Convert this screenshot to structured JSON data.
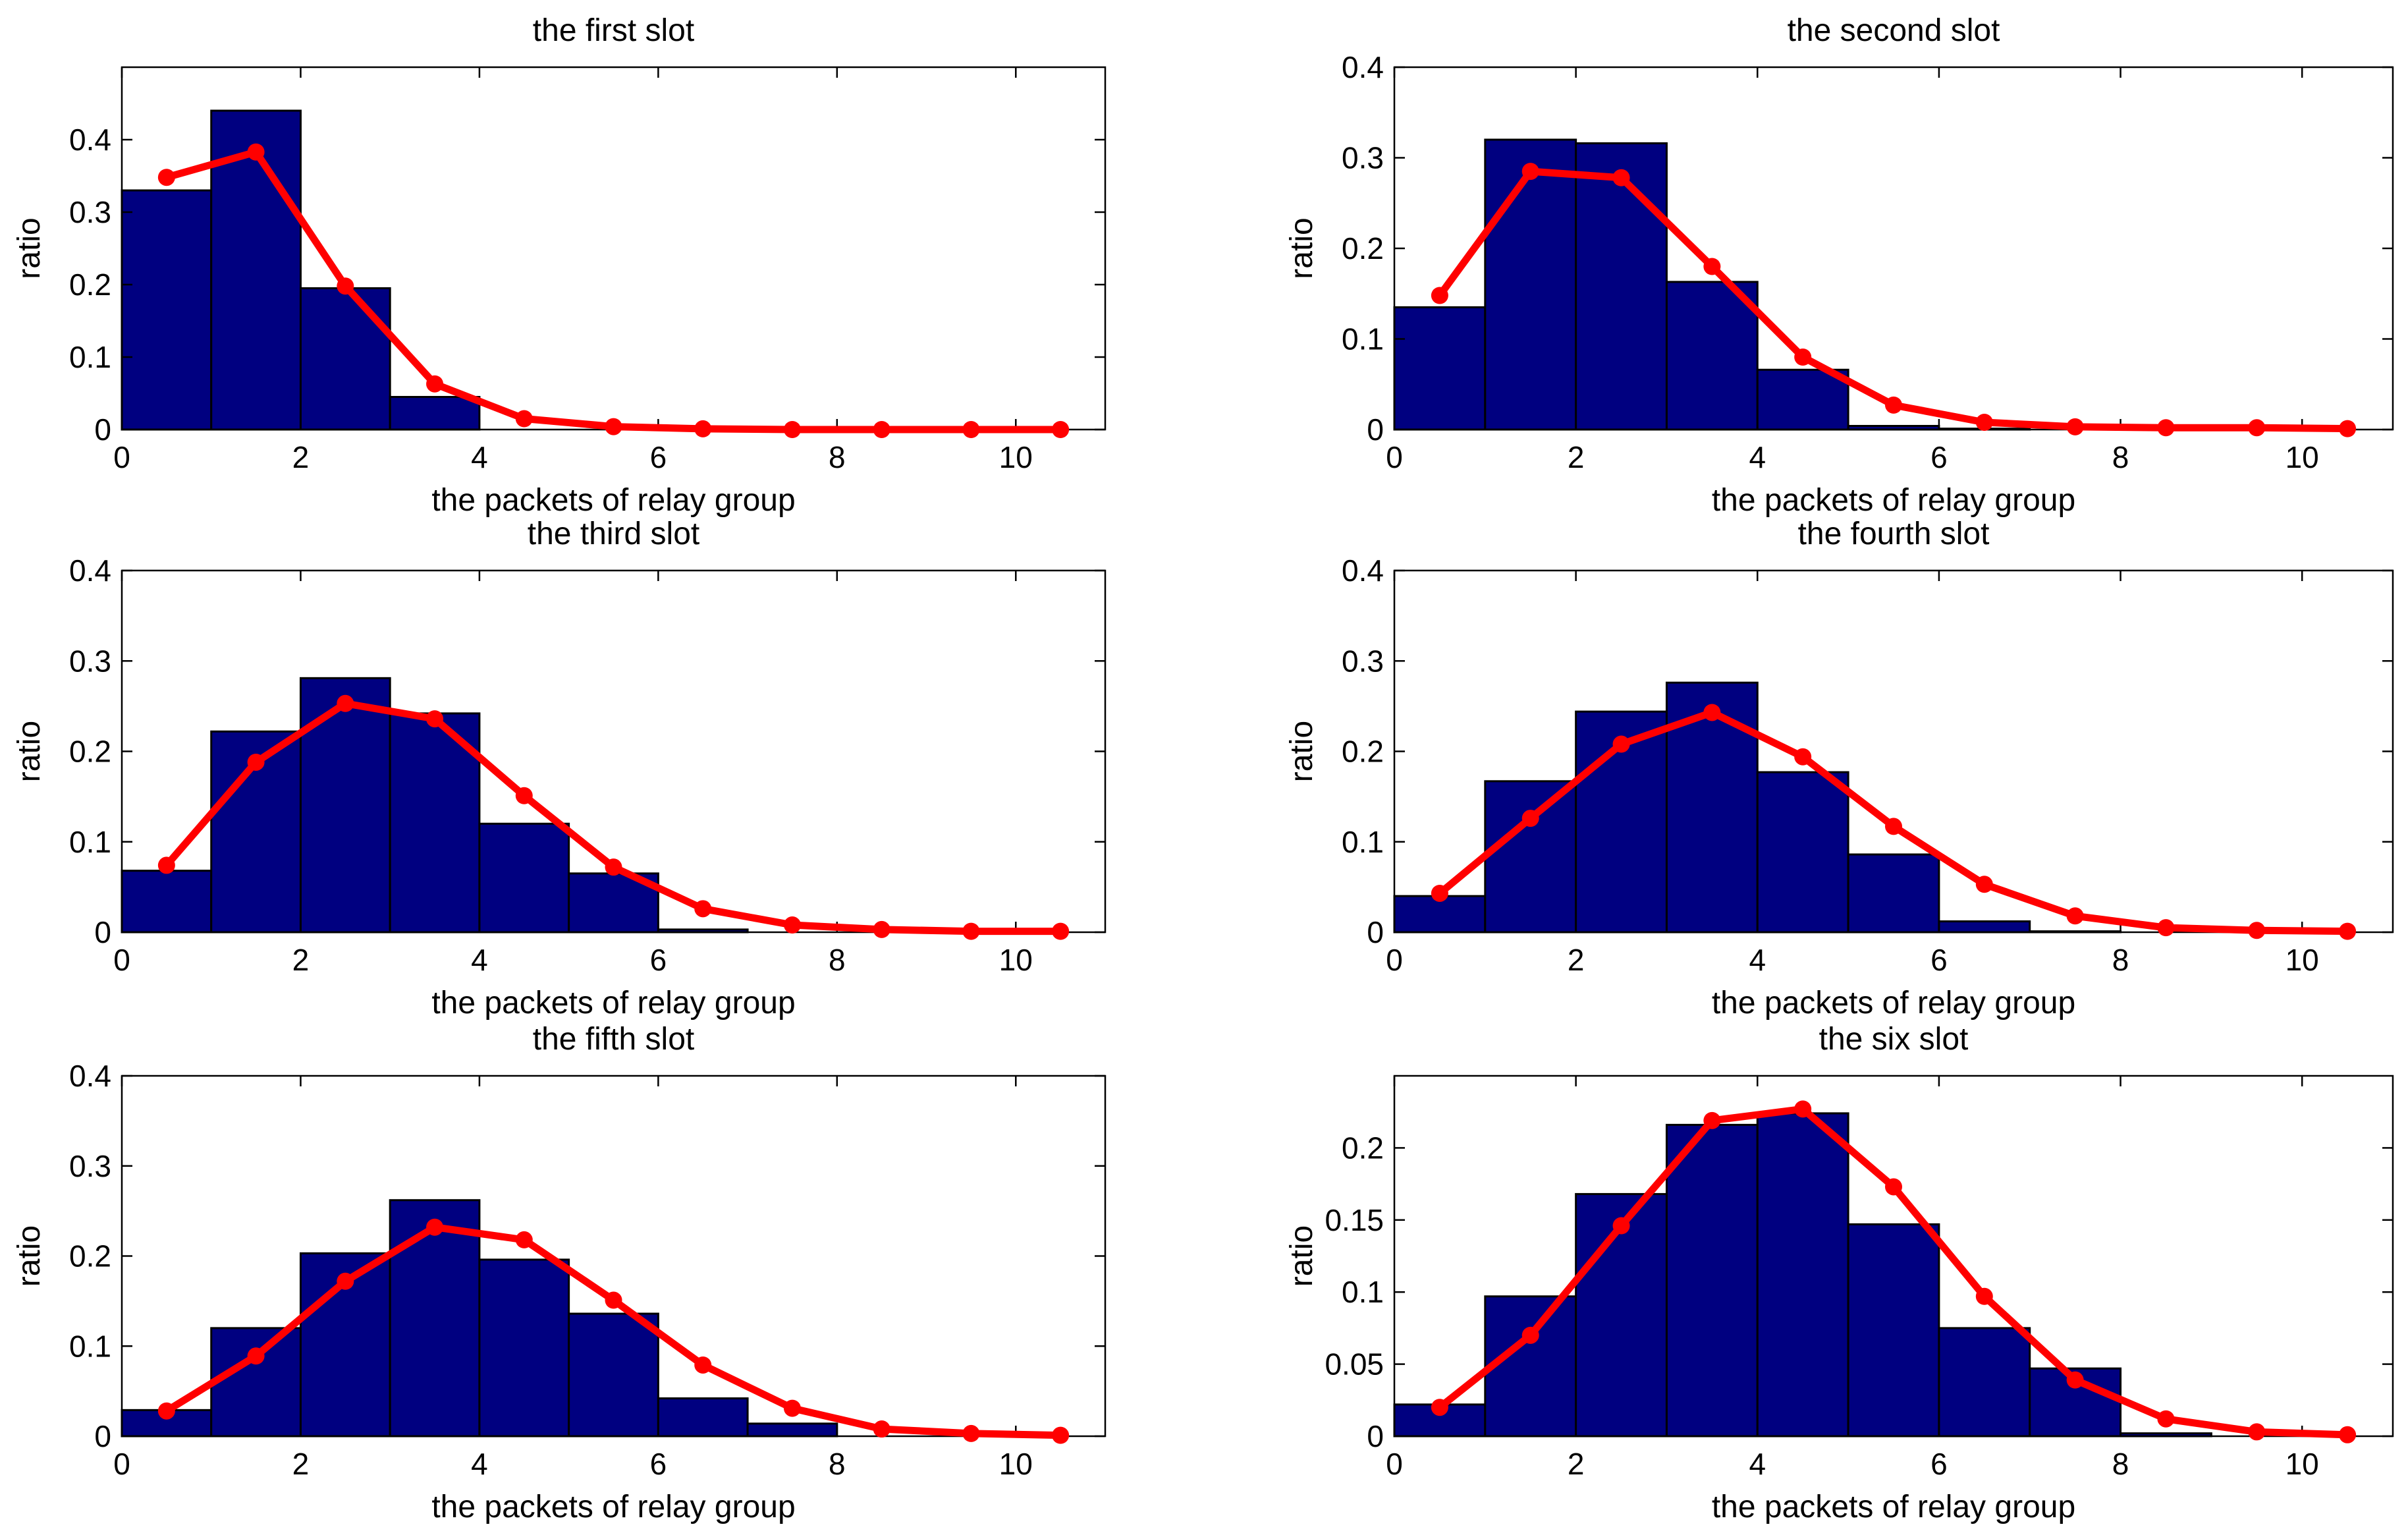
{
  "chart_data": [
    {
      "type": "bar",
      "title": "the first slot",
      "xlabel": "the packets of relay group",
      "ylabel": "ratio",
      "xlim": [
        0,
        11
      ],
      "ylim": [
        0,
        0.5
      ],
      "xticks": [
        0,
        2,
        4,
        6,
        8,
        10
      ],
      "yticks": [
        0,
        0.1,
        0.2,
        0.3,
        0.4
      ],
      "ytick_labels": [
        "0",
        "0.1",
        "0.2",
        "0.3",
        "0.4"
      ],
      "bins": [
        0,
        1,
        2,
        3,
        4,
        5,
        6,
        7,
        8,
        9,
        10
      ],
      "bar_values": [
        0.33,
        0.44,
        0.195,
        0.045,
        0,
        0,
        0,
        0,
        0,
        0,
        0
      ],
      "line": {
        "x": [
          0.5,
          1.5,
          2.5,
          3.5,
          4.5,
          5.5,
          6.5,
          7.5,
          8.5,
          9.5,
          10.5
        ],
        "y": [
          0.348,
          0.383,
          0.198,
          0.063,
          0.015,
          0.004,
          0.001,
          0.0,
          0.0,
          0.0,
          0.0
        ]
      },
      "bar_color": "#000080",
      "line_color": "#ff0000"
    },
    {
      "type": "bar",
      "title": "the second slot",
      "xlabel": "the packets of relay group",
      "ylabel": "ratio",
      "xlim": [
        0,
        11
      ],
      "ylim": [
        0,
        0.4
      ],
      "xticks": [
        0,
        2,
        4,
        6,
        8,
        10
      ],
      "yticks": [
        0,
        0.1,
        0.2,
        0.3,
        0.4
      ],
      "ytick_labels": [
        "0",
        "0.1",
        "0.2",
        "0.3",
        "0.4"
      ],
      "bins": [
        0,
        1,
        2,
        3,
        4,
        5,
        6,
        7,
        8,
        9,
        10
      ],
      "bar_values": [
        0.135,
        0.32,
        0.316,
        0.163,
        0.066,
        0.004,
        0.001,
        0,
        0,
        0,
        0
      ],
      "line": {
        "x": [
          0.5,
          1.5,
          2.5,
          3.5,
          4.5,
          5.5,
          6.5,
          7.5,
          8.5,
          9.5,
          10.5
        ],
        "y": [
          0.148,
          0.285,
          0.278,
          0.18,
          0.08,
          0.027,
          0.008,
          0.003,
          0.002,
          0.002,
          0.001
        ]
      },
      "bar_color": "#000080",
      "line_color": "#ff0000"
    },
    {
      "type": "bar",
      "title": "the third slot",
      "xlabel": "the packets of relay group",
      "ylabel": "ratio",
      "xlim": [
        0,
        11
      ],
      "ylim": [
        0,
        0.4
      ],
      "xticks": [
        0,
        2,
        4,
        6,
        8,
        10
      ],
      "yticks": [
        0,
        0.1,
        0.2,
        0.3,
        0.4
      ],
      "ytick_labels": [
        "0",
        "0.1",
        "0.2",
        "0.3",
        "0.4"
      ],
      "bins": [
        0,
        1,
        2,
        3,
        4,
        5,
        6,
        7,
        8,
        9,
        10
      ],
      "bar_values": [
        0.068,
        0.222,
        0.281,
        0.242,
        0.12,
        0.065,
        0.003,
        0,
        0,
        0,
        0
      ],
      "line": {
        "x": [
          0.5,
          1.5,
          2.5,
          3.5,
          4.5,
          5.5,
          6.5,
          7.5,
          8.5,
          9.5,
          10.5
        ],
        "y": [
          0.074,
          0.188,
          0.253,
          0.236,
          0.151,
          0.072,
          0.026,
          0.008,
          0.003,
          0.001,
          0.001
        ]
      },
      "bar_color": "#000080",
      "line_color": "#ff0000"
    },
    {
      "type": "bar",
      "title": "the fourth slot",
      "xlabel": "the packets of relay group",
      "ylabel": "ratio",
      "xlim": [
        0,
        11
      ],
      "ylim": [
        0,
        0.4
      ],
      "xticks": [
        0,
        2,
        4,
        6,
        8,
        10
      ],
      "yticks": [
        0,
        0.1,
        0.2,
        0.3,
        0.4
      ],
      "ytick_labels": [
        "0",
        "0.1",
        "0.2",
        "0.3",
        "0.4"
      ],
      "bins": [
        0,
        1,
        2,
        3,
        4,
        5,
        6,
        7,
        8,
        9,
        10
      ],
      "bar_values": [
        0.04,
        0.167,
        0.244,
        0.276,
        0.177,
        0.086,
        0.012,
        0.001,
        0,
        0,
        0
      ],
      "line": {
        "x": [
          0.5,
          1.5,
          2.5,
          3.5,
          4.5,
          5.5,
          6.5,
          7.5,
          8.5,
          9.5,
          10.5
        ],
        "y": [
          0.043,
          0.126,
          0.208,
          0.243,
          0.194,
          0.117,
          0.053,
          0.018,
          0.005,
          0.002,
          0.001
        ]
      },
      "bar_color": "#000080",
      "line_color": "#ff0000"
    },
    {
      "type": "bar",
      "title": "the fifth slot",
      "xlabel": "the packets of relay group",
      "ylabel": "ratio",
      "xlim": [
        0,
        11
      ],
      "ylim": [
        0,
        0.4
      ],
      "xticks": [
        0,
        2,
        4,
        6,
        8,
        10
      ],
      "yticks": [
        0,
        0.1,
        0.2,
        0.3,
        0.4
      ],
      "ytick_labels": [
        "0",
        "0.1",
        "0.2",
        "0.3",
        "0.4"
      ],
      "bins": [
        0,
        1,
        2,
        3,
        4,
        5,
        6,
        7,
        8,
        9,
        10
      ],
      "bar_values": [
        0.029,
        0.12,
        0.203,
        0.262,
        0.196,
        0.136,
        0.042,
        0.014,
        0,
        0,
        0
      ],
      "line": {
        "x": [
          0.5,
          1.5,
          2.5,
          3.5,
          4.5,
          5.5,
          6.5,
          7.5,
          8.5,
          9.5,
          10.5
        ],
        "y": [
          0.028,
          0.089,
          0.172,
          0.232,
          0.218,
          0.151,
          0.079,
          0.031,
          0.008,
          0.003,
          0.001
        ]
      },
      "bar_color": "#000080",
      "line_color": "#ff0000"
    },
    {
      "type": "bar",
      "title": "the six slot",
      "xlabel": "the packets of relay group",
      "ylabel": "ratio",
      "xlim": [
        0,
        11
      ],
      "ylim": [
        0,
        0.25
      ],
      "xticks": [
        0,
        2,
        4,
        6,
        8,
        10
      ],
      "yticks": [
        0,
        0.05,
        0.1,
        0.15,
        0.2
      ],
      "ytick_labels": [
        "0",
        "0.05",
        "0.1",
        "0.15",
        "0.2"
      ],
      "bins": [
        0,
        1,
        2,
        3,
        4,
        5,
        6,
        7,
        8,
        9,
        10
      ],
      "bar_values": [
        0.022,
        0.097,
        0.168,
        0.216,
        0.224,
        0.147,
        0.075,
        0.047,
        0.002,
        0,
        0
      ],
      "line": {
        "x": [
          0.5,
          1.5,
          2.5,
          3.5,
          4.5,
          5.5,
          6.5,
          7.5,
          8.5,
          9.5,
          10.5
        ],
        "y": [
          0.02,
          0.07,
          0.146,
          0.219,
          0.227,
          0.173,
          0.097,
          0.039,
          0.012,
          0.003,
          0.001
        ]
      },
      "bar_color": "#000080",
      "line_color": "#ff0000"
    }
  ]
}
